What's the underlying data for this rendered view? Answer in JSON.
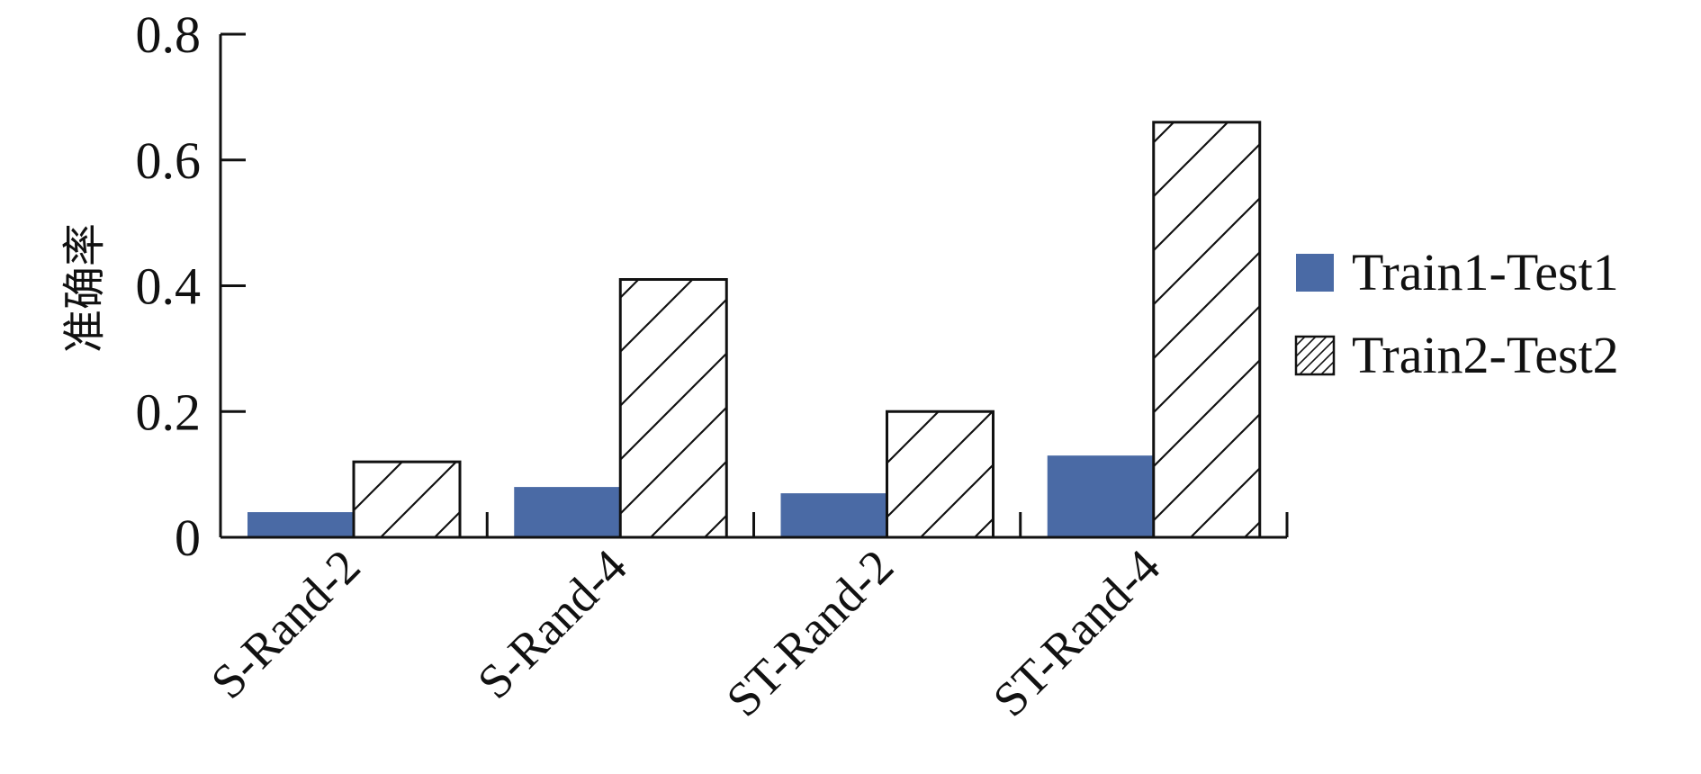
{
  "chart_data": {
    "type": "bar",
    "title": "",
    "xlabel": "",
    "ylabel": "准确率",
    "ylim": [
      0,
      0.8
    ],
    "yticks": [
      "0",
      "0.2",
      "0.4",
      "0.6",
      "0.8"
    ],
    "categories": [
      "S-Rand-2",
      "S-Rand-4",
      "ST-Rand-2",
      "ST-Rand-4"
    ],
    "series": [
      {
        "name": "Train1-Test1",
        "values": [
          0.04,
          0.08,
          0.07,
          0.13
        ],
        "fill": "solid",
        "color": "#4a6aa5"
      },
      {
        "name": "Train2-Test2",
        "values": [
          0.12,
          0.41,
          0.2,
          0.66
        ],
        "fill": "hatch",
        "color": "#ffffff"
      }
    ],
    "legend_position": "right",
    "grid": false
  }
}
